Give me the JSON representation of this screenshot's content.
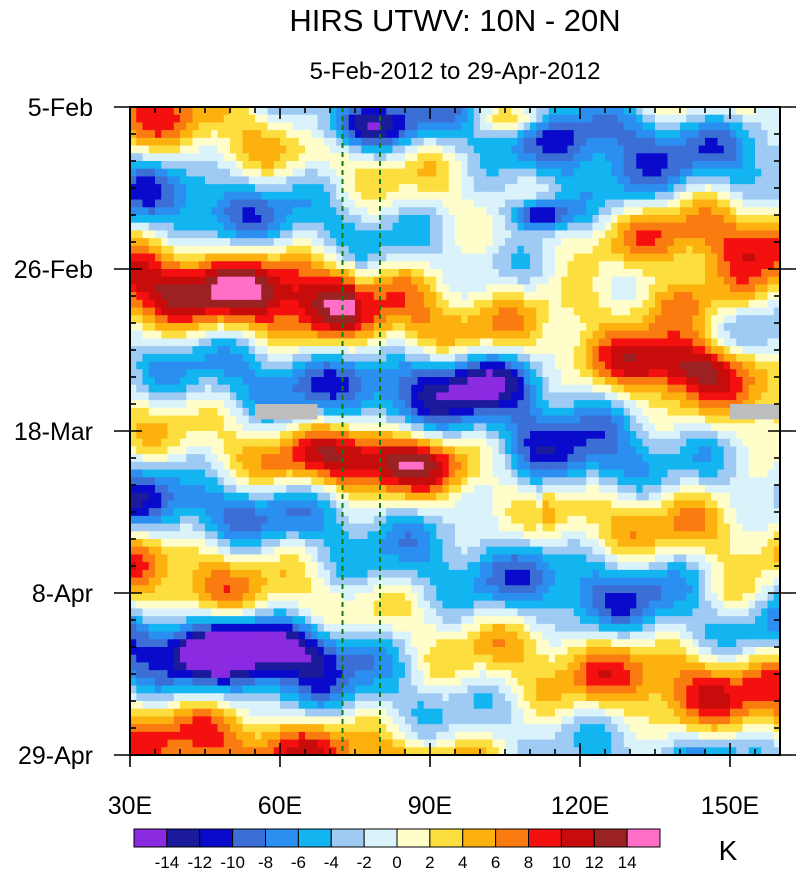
{
  "chart_data": {
    "type": "heatmap",
    "title": "HIRS UTWV: 10N - 20N",
    "subtitle": "5-Feb-2012 to 29-Apr-2012",
    "units_label": "K",
    "x_ticks": [
      {
        "value": 30,
        "label": "30E"
      },
      {
        "value": 60,
        "label": "60E"
      },
      {
        "value": 90,
        "label": "90E"
      },
      {
        "value": 120,
        "label": "120E"
      },
      {
        "value": 150,
        "label": "150E"
      }
    ],
    "x_range": [
      30,
      160
    ],
    "y_ticks": [
      {
        "day": 0,
        "label": "5-Feb"
      },
      {
        "day": 21,
        "label": "26-Feb"
      },
      {
        "day": 42,
        "label": "18-Mar"
      },
      {
        "day": 63,
        "label": "8-Apr"
      },
      {
        "day": 84,
        "label": "29-Apr"
      }
    ],
    "y_range": [
      0,
      84
    ],
    "reference_lines_lon": [
      72.5,
      80
    ],
    "colorbar": {
      "levels": [
        -14,
        -12,
        -10,
        -8,
        -6,
        -4,
        -2,
        0,
        2,
        4,
        6,
        8,
        10,
        12,
        14
      ],
      "labels": [
        "-14",
        "-12",
        "-10",
        "-8",
        "-6",
        "-4",
        "-2",
        "0",
        "2",
        "4",
        "6",
        "8",
        "10",
        "12",
        "14"
      ],
      "colors": [
        "#8a2be2",
        "#1a1a9a",
        "#0a0acd",
        "#3b6fd6",
        "#2a8ff0",
        "#12b5f0",
        "#9ecaf4",
        "#daf3fb",
        "#fffecb",
        "#fdde3f",
        "#fcb10f",
        "#fa7b10",
        "#f51010",
        "#c80c0c",
        "#9b2222",
        "#ff6ec7"
      ]
    },
    "missing_color": "#bdbdbd",
    "features": [
      {
        "lon": 76,
        "day": 2.5,
        "value": -11,
        "dlon": 10,
        "dday": 3
      },
      {
        "lon": 107,
        "day": 1.5,
        "value": 9,
        "dlon": 7,
        "dday": 2
      },
      {
        "lon": 120,
        "day": 12,
        "value": -9,
        "dlon": 20,
        "dday": 5
      },
      {
        "lon": 112,
        "day": 14,
        "value": -13,
        "dlon": 6,
        "dday": 2
      },
      {
        "lon": 140,
        "day": 26,
        "value": 9,
        "dlon": 22,
        "dday": 4
      },
      {
        "lon": 140,
        "day": 33,
        "value": 13,
        "dlon": 14,
        "dday": 4
      },
      {
        "lon": 100,
        "day": 35,
        "value": -10,
        "dlon": 14,
        "dday": 4
      },
      {
        "lon": 80,
        "day": 45,
        "value": 10,
        "dlon": 16,
        "dday": 4
      },
      {
        "lon": 118,
        "day": 47,
        "value": -10,
        "dlon": 16,
        "dday": 5
      },
      {
        "lon": 57,
        "day": 70,
        "value": -13,
        "dlon": 20,
        "dday": 4
      },
      {
        "lon": 150,
        "day": 64,
        "value": 6,
        "dlon": 10,
        "dday": 4
      }
    ]
  }
}
